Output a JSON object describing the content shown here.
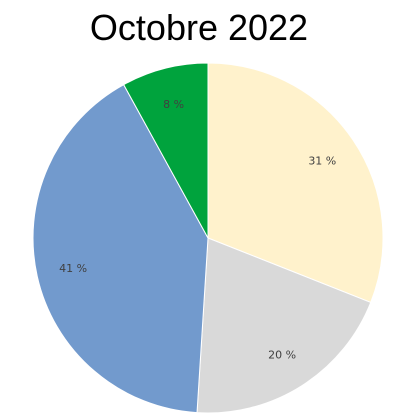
{
  "chart_data": {
    "type": "pie",
    "title": "Octobre 2022",
    "slices": [
      {
        "label": "31 %",
        "value": 31,
        "color": "#FFF2CC"
      },
      {
        "label": "20 %",
        "value": 20,
        "color": "#D9D9D9"
      },
      {
        "label": "41 %",
        "value": 41,
        "color": "#729ACD"
      },
      {
        "label": "8 %",
        "value": 8,
        "color": "#00A33D"
      }
    ],
    "start_angle_deg": 0,
    "direction": "clockwise",
    "legend": "none"
  }
}
